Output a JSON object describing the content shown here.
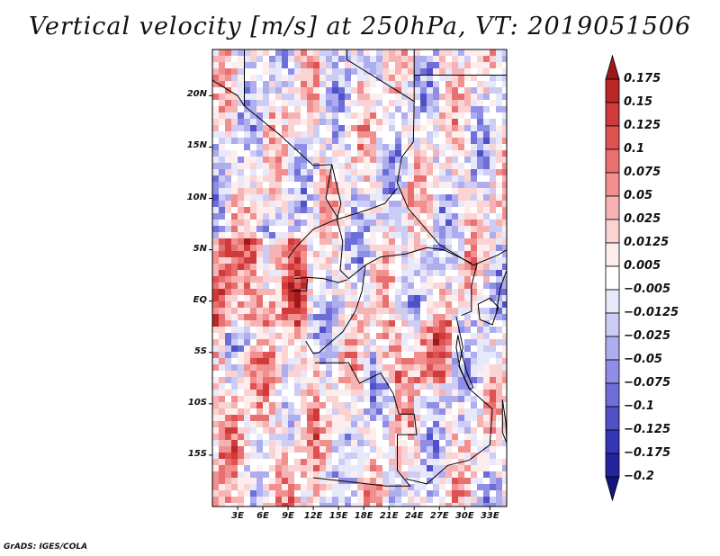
{
  "title": "Vertical velocity [m/s] at 250hPa, VT: 2019051506",
  "credit": "GrADS: IGES/COLA",
  "map": {
    "lat_labels": [
      {
        "text": "20N",
        "lat": 20
      },
      {
        "text": "15N",
        "lat": 15
      },
      {
        "text": "10N",
        "lat": 10
      },
      {
        "text": "5N",
        "lat": 5
      },
      {
        "text": "EQ",
        "lat": 0
      },
      {
        "text": "5S",
        "lat": -5
      },
      {
        "text": "10S",
        "lat": -10
      },
      {
        "text": "15S",
        "lat": -15
      }
    ],
    "lon_labels": [
      {
        "text": "3E",
        "lon": 3
      },
      {
        "text": "6E",
        "lon": 6
      },
      {
        "text": "9E",
        "lon": 9
      },
      {
        "text": "12E",
        "lon": 12
      },
      {
        "text": "15E",
        "lon": 15
      },
      {
        "text": "18E",
        "lon": 18
      },
      {
        "text": "21E",
        "lon": 21
      },
      {
        "text": "24E",
        "lon": 24
      },
      {
        "text": "27E",
        "lon": 27
      },
      {
        "text": "30E",
        "lon": 30
      },
      {
        "text": "33E",
        "lon": 33
      }
    ],
    "lon_range": [
      0,
      35
    ],
    "lat_range": [
      -20,
      24.5
    ]
  },
  "colorbar": {
    "labels": [
      "0.175",
      "0.15",
      "0.125",
      "0.1",
      "0.075",
      "0.05",
      "0.025",
      "0.0125",
      "0.005",
      "−0.005",
      "−0.0125",
      "−0.025",
      "−0.05",
      "−0.075",
      "−0.1",
      "−0.125",
      "−0.175",
      "−0.2"
    ],
    "colors": [
      "#a01818",
      "#bb2626",
      "#d03a3a",
      "#df5252",
      "#e97070",
      "#f29090",
      "#f7b3b3",
      "#fbd3d3",
      "#fdeded",
      "#ffffff",
      "#e8e8fb",
      "#ccccf5",
      "#aeaeef",
      "#8e8ee6",
      "#6e6ed8",
      "#5050c8",
      "#3636b4",
      "#24249e",
      "#14147e"
    ]
  }
}
